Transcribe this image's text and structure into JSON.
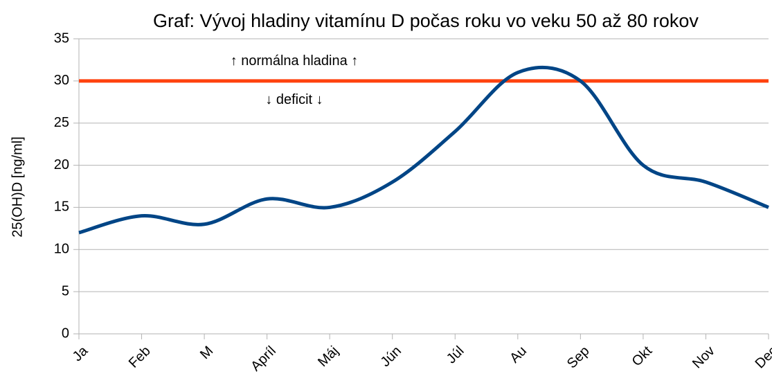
{
  "chart_data": {
    "type": "line",
    "title": "Graf: Vývoj hladiny vitamínu D počas roku vo veku 50 až 80 rokov",
    "y_label": "25(OH)D [ng/ml]",
    "categories": [
      "Ja",
      "Feb",
      "M",
      "Apríl",
      "Máj",
      "Jún",
      "Júl",
      "Au",
      "Sep",
      "Okt",
      "Nov",
      "Dec"
    ],
    "values": [
      12,
      14,
      13,
      16,
      15,
      18,
      24,
      31,
      30,
      20,
      18,
      15
    ],
    "color": "#004586",
    "reference_line": {
      "value": 30,
      "color": "#ff420e"
    },
    "annotations": [
      "↑ normálna hladina ↑",
      "↓ deficit ↓"
    ],
    "ylim": [
      0,
      35
    ],
    "yticks": [
      0,
      5,
      10,
      15,
      20,
      25,
      30,
      35
    ],
    "grid": true,
    "smooth": true
  }
}
